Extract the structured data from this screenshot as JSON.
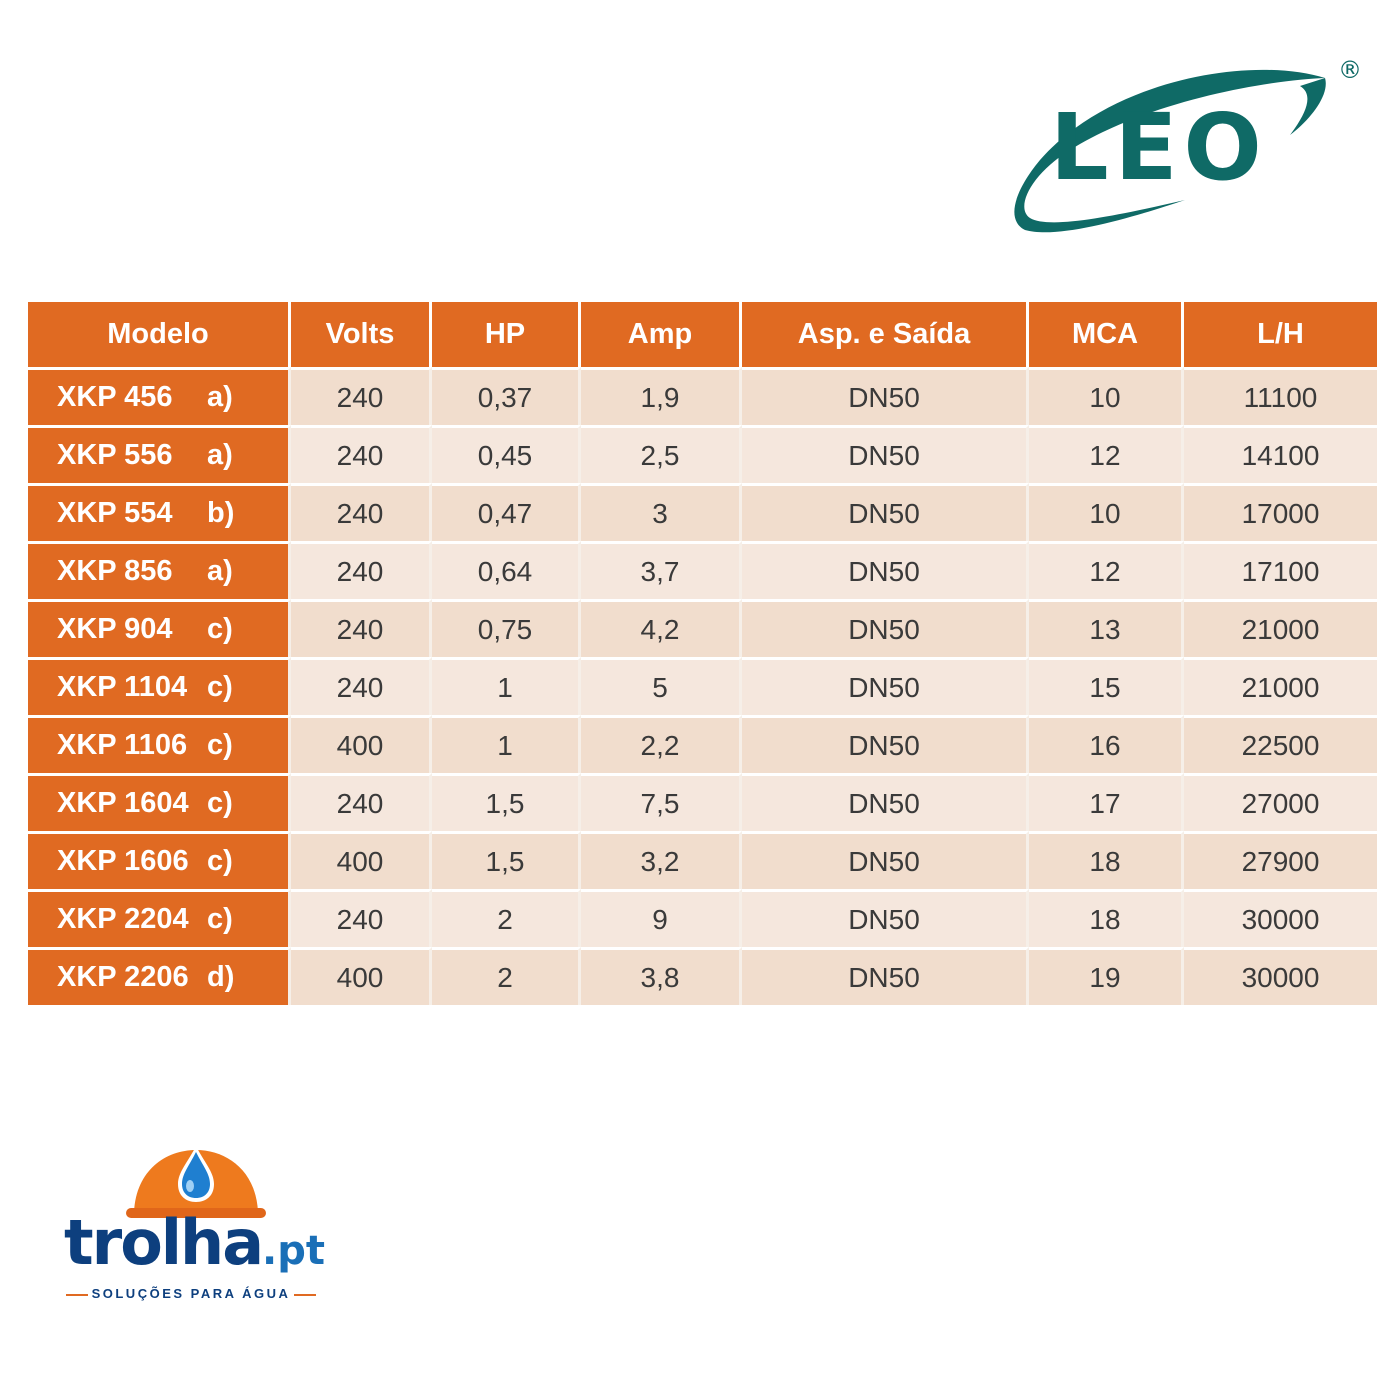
{
  "brand": {
    "logo_text": "LEO",
    "registered_mark": "®",
    "color": "#0f6a66"
  },
  "table": {
    "headers": [
      "Modelo",
      "Volts",
      "HP",
      "Amp",
      "Asp. e Saída",
      "MCA",
      "L/H"
    ],
    "rows": [
      {
        "model": "XKP 456",
        "variant": "a)",
        "volts": "240",
        "hp": "0,37",
        "amp": "1,9",
        "port": "DN50",
        "mca": "10",
        "lh": "11100"
      },
      {
        "model": "XKP 556",
        "variant": "a)",
        "volts": "240",
        "hp": "0,45",
        "amp": "2,5",
        "port": "DN50",
        "mca": "12",
        "lh": "14100"
      },
      {
        "model": "XKP 554",
        "variant": "b)",
        "volts": "240",
        "hp": "0,47",
        "amp": "3",
        "port": "DN50",
        "mca": "10",
        "lh": "17000"
      },
      {
        "model": "XKP 856",
        "variant": "a)",
        "volts": "240",
        "hp": "0,64",
        "amp": "3,7",
        "port": "DN50",
        "mca": "12",
        "lh": "17100"
      },
      {
        "model": "XKP 904",
        "variant": "c)",
        "volts": "240",
        "hp": "0,75",
        "amp": "4,2",
        "port": "DN50",
        "mca": "13",
        "lh": "21000"
      },
      {
        "model": "XKP 1104",
        "variant": "c)",
        "volts": "240",
        "hp": "1",
        "amp": "5",
        "port": "DN50",
        "mca": "15",
        "lh": "21000"
      },
      {
        "model": "XKP 1106",
        "variant": "c)",
        "volts": "400",
        "hp": "1",
        "amp": "2,2",
        "port": "DN50",
        "mca": "16",
        "lh": "22500"
      },
      {
        "model": "XKP 1604",
        "variant": "c)",
        "volts": "240",
        "hp": "1,5",
        "amp": "7,5",
        "port": "DN50",
        "mca": "17",
        "lh": "27000"
      },
      {
        "model": "XKP 1606",
        "variant": "c)",
        "volts": "400",
        "hp": "1,5",
        "amp": "3,2",
        "port": "DN50",
        "mca": "18",
        "lh": "27900"
      },
      {
        "model": "XKP 2204",
        "variant": "c)",
        "volts": "240",
        "hp": "2",
        "amp": "9",
        "port": "DN50",
        "mca": "18",
        "lh": "30000"
      },
      {
        "model": "XKP 2206",
        "variant": "d)",
        "volts": "400",
        "hp": "2",
        "amp": "3,8",
        "port": "DN50",
        "mca": "19",
        "lh": "30000"
      }
    ],
    "accent_color": "#e06a22"
  },
  "footer_logo": {
    "word": "trolha",
    "domain": ".pt",
    "tagline": "SOLUÇÕES PARA ÁGUA",
    "primary_color": "#0d3f7e",
    "helmet_color": "#ee7a1e"
  }
}
